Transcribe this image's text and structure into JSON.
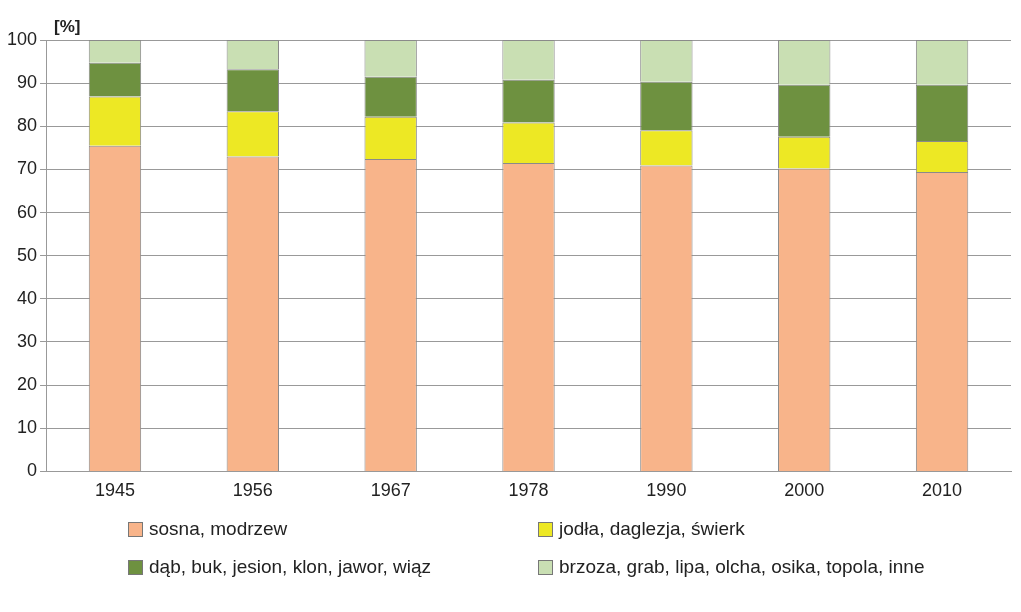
{
  "chart_data": {
    "type": "bar",
    "stacked": true,
    "ylabel": "[%]",
    "categories": [
      "1945",
      "1956",
      "1967",
      "1978",
      "1990",
      "2000",
      "2010"
    ],
    "series": [
      {
        "name": "sosna, modrzew",
        "color": "#f8b48a",
        "values": [
          75.5,
          73.0,
          72.4,
          71.5,
          70.9,
          70.2,
          69.4
        ]
      },
      {
        "name": "jodła, daglezja, świerk",
        "color": "#ede824",
        "values": [
          11.4,
          10.5,
          9.8,
          9.4,
          8.2,
          7.4,
          7.2
        ]
      },
      {
        "name": "dąb, buk, jesion, klon, jawor, wiąz",
        "color": "#6e9140",
        "values": [
          7.8,
          9.7,
          9.3,
          9.9,
          11.2,
          12.0,
          13.0
        ]
      },
      {
        "name": "brzoza, grab, lipa, olcha, osika, topola, inne",
        "color": "#c9dfb3",
        "values": [
          5.3,
          6.8,
          8.5,
          9.2,
          9.7,
          10.4,
          10.4
        ]
      }
    ],
    "ylim": [
      0,
      100
    ],
    "yticks": [
      0,
      10,
      20,
      30,
      40,
      50,
      60,
      70,
      80,
      90,
      100
    ],
    "grid": "y",
    "legend": "bottom"
  }
}
